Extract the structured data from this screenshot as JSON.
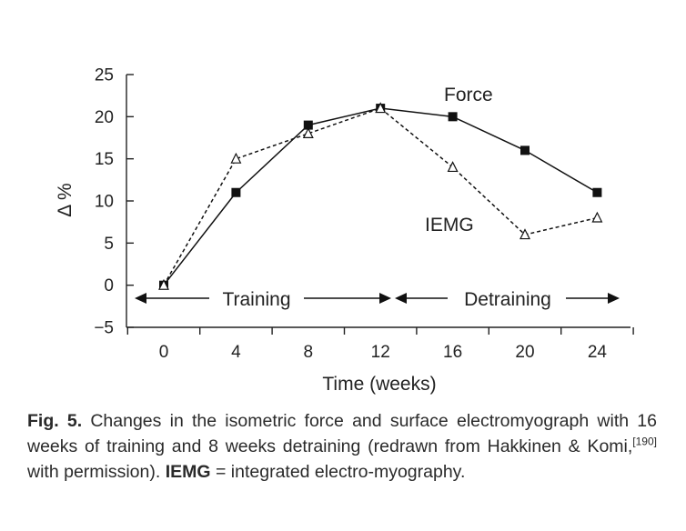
{
  "chart_data": {
    "type": "line",
    "x": [
      0,
      4,
      8,
      12,
      16,
      20,
      24
    ],
    "series": [
      {
        "name": "Force",
        "values": [
          0,
          11,
          19,
          21,
          20,
          16,
          11
        ],
        "marker": "filled-square",
        "line": "solid"
      },
      {
        "name": "IEMG",
        "values": [
          0,
          15,
          18,
          21,
          14,
          6,
          8
        ],
        "marker": "open-triangle",
        "line": "dashed"
      }
    ],
    "xticks": [
      "0",
      "4",
      "8",
      "12",
      "16",
      "20",
      "24"
    ],
    "yticks": [
      "25",
      "20",
      "15",
      "10",
      "5",
      "0",
      "−5"
    ],
    "xlabel": "Time (weeks)",
    "ylabel": "Δ %",
    "xlim": [
      -4,
      27
    ],
    "ylim": [
      -5,
      25
    ],
    "grid": false,
    "annotations": {
      "training": "Training",
      "detraining": "Detraining"
    }
  },
  "caption": {
    "fig_label": "Fig. 5.",
    "text1": " Changes in the isometric force and surface electromyograph with 16 weeks of training and 8 weeks detraining (redrawn from Hakkinen & Komi,",
    "ref": "[190]",
    "text2": " with permission). ",
    "abbr": "IEMG",
    "text3": " = integrated electro-myography."
  }
}
